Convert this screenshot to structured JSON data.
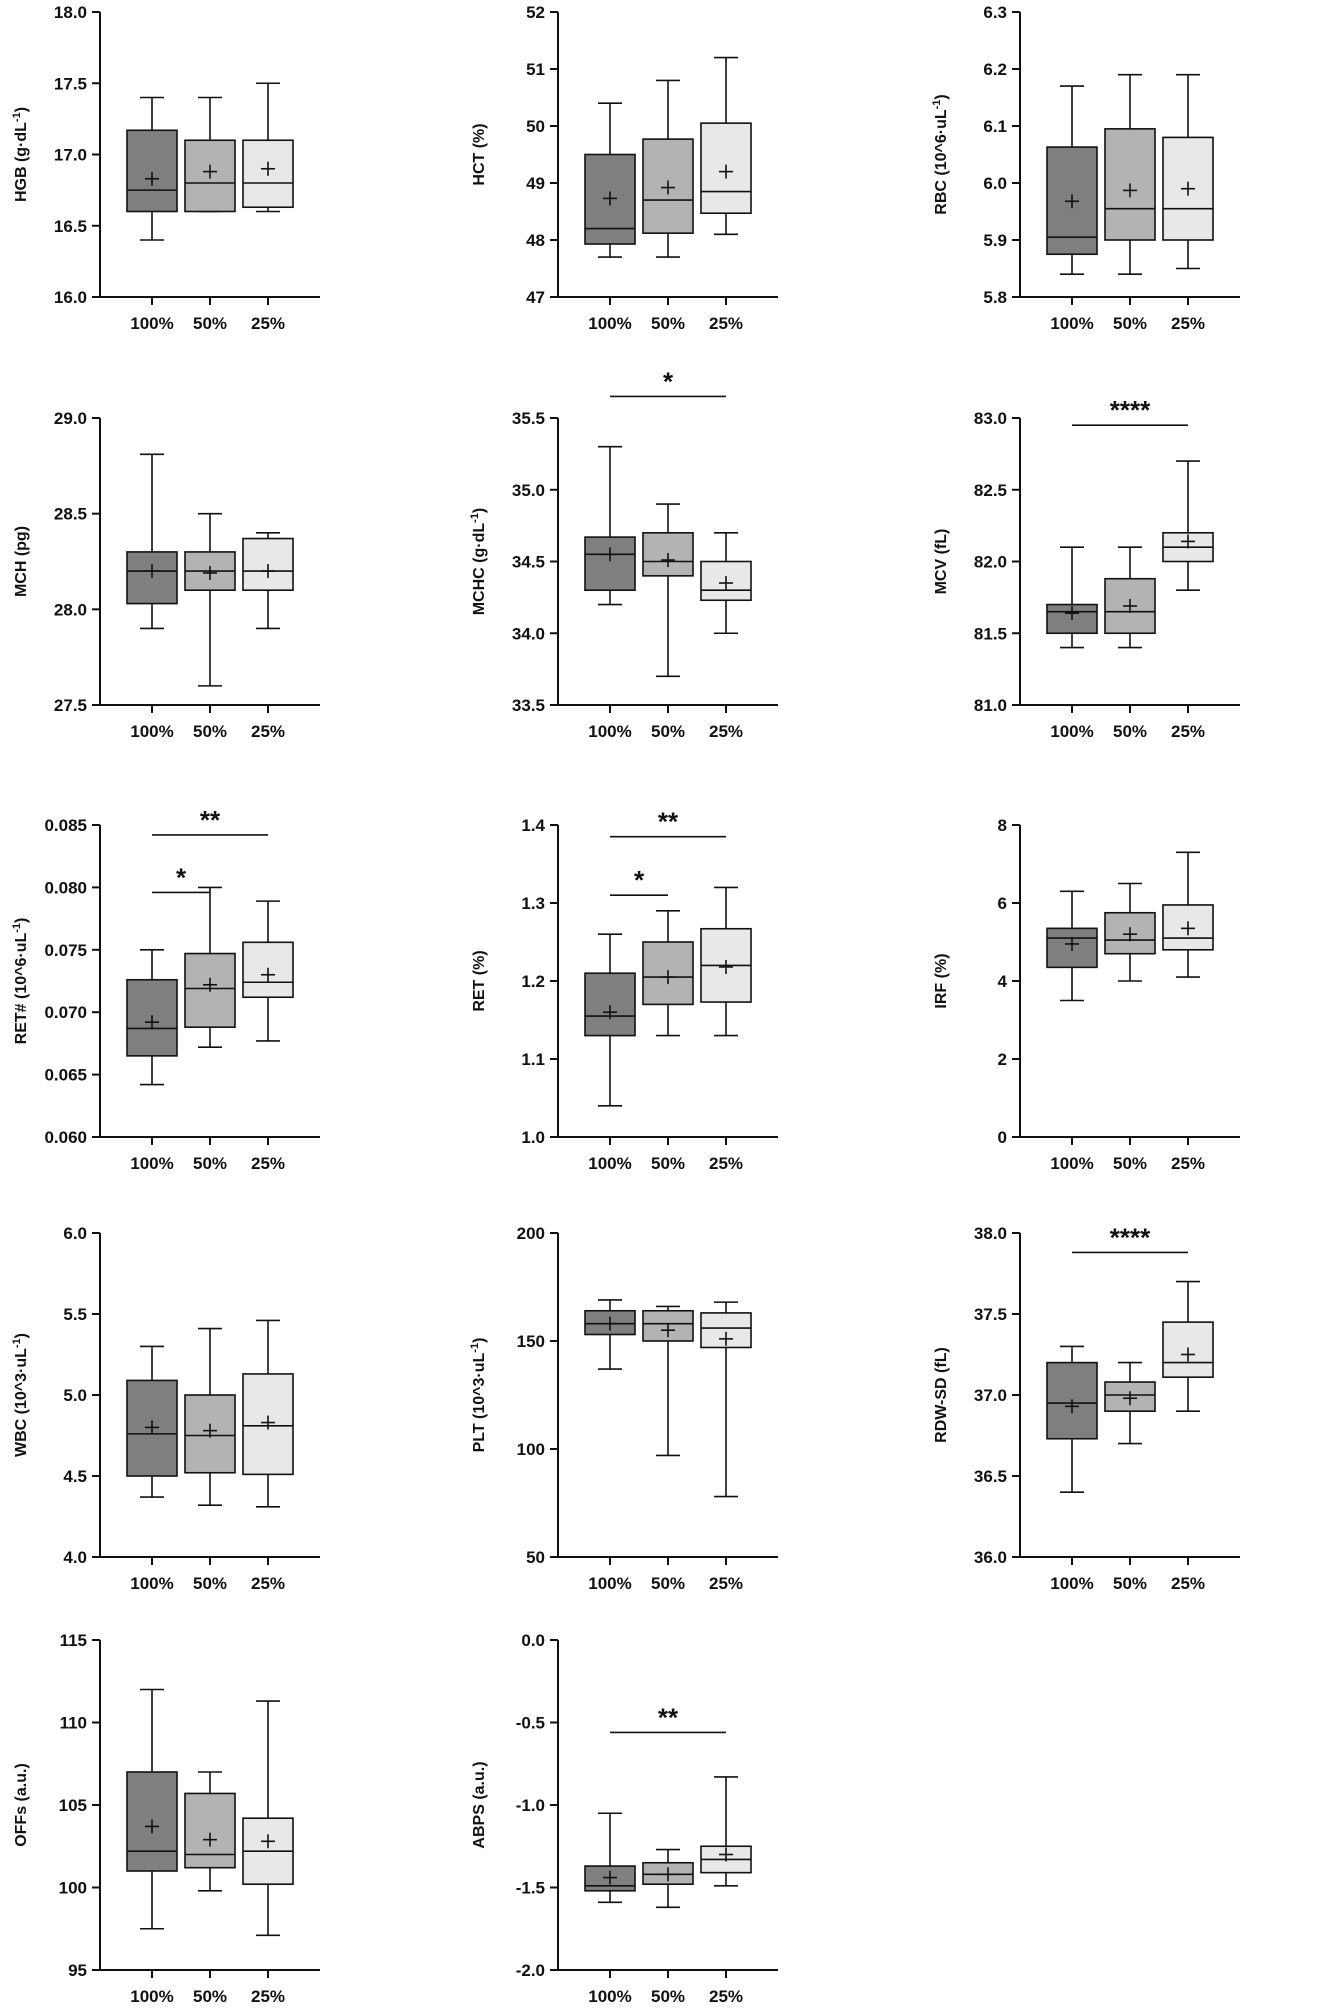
{
  "figure": {
    "title": ""
  },
  "groups": [
    "100%",
    "50%",
    "25%"
  ],
  "colors": {
    "fills": [
      "#7f7f7f",
      "#b3b3b3",
      "#e8e8e8"
    ],
    "stroke": "#111111"
  },
  "chart_data": [
    {
      "id": "hgb",
      "type": "boxplot",
      "ylabel": "HGB (g·dL",
      "ylabel_sup": "-1",
      "ylabel_end": ")",
      "ylim": [
        16.0,
        18.0
      ],
      "ticks": [
        16.0,
        16.5,
        17.0,
        17.5,
        18.0
      ],
      "tick_labels": [
        "16.0",
        "16.5",
        "17.0",
        "17.5",
        "18.0"
      ],
      "categories": [
        "100%",
        "50%",
        "25%"
      ],
      "boxes": [
        {
          "min": 16.4,
          "q1": 16.6,
          "median": 16.75,
          "q3": 17.17,
          "max": 17.4,
          "mean": 16.83
        },
        {
          "min": 16.6,
          "q1": 16.6,
          "median": 16.8,
          "q3": 17.1,
          "max": 17.4,
          "mean": 16.88
        },
        {
          "min": 16.6,
          "q1": 16.63,
          "median": 16.8,
          "q3": 17.1,
          "max": 17.5,
          "mean": 16.9
        }
      ],
      "significance": []
    },
    {
      "id": "hct",
      "type": "boxplot",
      "ylabel": "HCT (%)",
      "ylabel_sup": "",
      "ylabel_end": "",
      "ylim": [
        47,
        52
      ],
      "ticks": [
        47,
        48,
        49,
        50,
        51,
        52
      ],
      "tick_labels": [
        "47",
        "48",
        "49",
        "50",
        "51",
        "52"
      ],
      "categories": [
        "100%",
        "50%",
        "25%"
      ],
      "boxes": [
        {
          "min": 47.7,
          "q1": 47.93,
          "median": 48.2,
          "q3": 49.5,
          "max": 50.4,
          "mean": 48.73
        },
        {
          "min": 47.7,
          "q1": 48.12,
          "median": 48.7,
          "q3": 49.77,
          "max": 50.8,
          "mean": 48.92
        },
        {
          "min": 48.1,
          "q1": 48.47,
          "median": 48.85,
          "q3": 50.05,
          "max": 51.2,
          "mean": 49.2
        }
      ],
      "significance": []
    },
    {
      "id": "rbc",
      "type": "boxplot",
      "ylabel": "RBC (10^6·uL",
      "ylabel_sup": "-1",
      "ylabel_end": ")",
      "ylim": [
        5.8,
        6.3
      ],
      "ticks": [
        5.8,
        5.9,
        6.0,
        6.1,
        6.2,
        6.3
      ],
      "tick_labels": [
        "5.8",
        "5.9",
        "6.0",
        "6.1",
        "6.2",
        "6.3"
      ],
      "categories": [
        "100%",
        "50%",
        "25%"
      ],
      "boxes": [
        {
          "min": 5.84,
          "q1": 5.875,
          "median": 5.905,
          "q3": 6.063,
          "max": 6.17,
          "mean": 5.968
        },
        {
          "min": 5.84,
          "q1": 5.9,
          "median": 5.955,
          "q3": 6.095,
          "max": 6.19,
          "mean": 5.987
        },
        {
          "min": 5.85,
          "q1": 5.9,
          "median": 5.955,
          "q3": 6.08,
          "max": 6.19,
          "mean": 5.99
        }
      ],
      "significance": []
    },
    {
      "id": "mch",
      "type": "boxplot",
      "ylabel": "MCH (pg)",
      "ylabel_sup": "",
      "ylabel_end": "",
      "ylim": [
        27.5,
        29.0
      ],
      "ticks": [
        27.5,
        28.0,
        28.5,
        29.0
      ],
      "tick_labels": [
        "27.5",
        "28.0",
        "28.5",
        "29.0"
      ],
      "categories": [
        "100%",
        "50%",
        "25%"
      ],
      "boxes": [
        {
          "min": 27.9,
          "q1": 28.03,
          "median": 28.2,
          "q3": 28.3,
          "max": 28.81,
          "mean": 28.2
        },
        {
          "min": 27.6,
          "q1": 28.1,
          "median": 28.2,
          "q3": 28.3,
          "max": 28.5,
          "mean": 28.19
        },
        {
          "min": 27.9,
          "q1": 28.1,
          "median": 28.2,
          "q3": 28.37,
          "max": 28.4,
          "mean": 28.2
        }
      ],
      "significance": []
    },
    {
      "id": "mchc",
      "type": "boxplot",
      "ylabel": "MCHC (g·dL",
      "ylabel_sup": "-1",
      "ylabel_end": ")",
      "ylim": [
        33.5,
        35.5
      ],
      "ticks": [
        33.5,
        34.0,
        34.5,
        35.0,
        35.5
      ],
      "tick_labels": [
        "33.5",
        "34.0",
        "34.5",
        "35.0",
        "35.5"
      ],
      "categories": [
        "100%",
        "50%",
        "25%"
      ],
      "boxes": [
        {
          "min": 34.2,
          "q1": 34.3,
          "median": 34.55,
          "q3": 34.67,
          "max": 35.3,
          "mean": 34.55
        },
        {
          "min": 33.7,
          "q1": 34.4,
          "median": 34.5,
          "q3": 34.7,
          "max": 34.9,
          "mean": 34.51
        },
        {
          "min": 34.0,
          "q1": 34.23,
          "median": 34.3,
          "q3": 34.5,
          "max": 34.7,
          "mean": 34.35
        }
      ],
      "significance": [
        {
          "from": 0,
          "to": 2,
          "y": 35.65,
          "label": "*"
        }
      ]
    },
    {
      "id": "mcv",
      "type": "boxplot",
      "ylabel": "MCV (fL)",
      "ylabel_sup": "",
      "ylabel_end": "",
      "ylim": [
        81.0,
        83.0
      ],
      "ticks": [
        81.0,
        81.5,
        82.0,
        82.5,
        83.0
      ],
      "tick_labels": [
        "81.0",
        "81.5",
        "82.0",
        "82.5",
        "83.0"
      ],
      "categories": [
        "100%",
        "50%",
        "25%"
      ],
      "boxes": [
        {
          "min": 81.4,
          "q1": 81.5,
          "median": 81.65,
          "q3": 81.7,
          "max": 82.1,
          "mean": 81.64
        },
        {
          "min": 81.4,
          "q1": 81.5,
          "median": 81.65,
          "q3": 81.88,
          "max": 82.1,
          "mean": 81.69
        },
        {
          "min": 81.8,
          "q1": 82.0,
          "median": 82.1,
          "q3": 82.2,
          "max": 82.7,
          "mean": 82.14
        }
      ],
      "significance": [
        {
          "from": 0,
          "to": 2,
          "y": 82.95,
          "label": "****"
        }
      ]
    },
    {
      "id": "ret-abs",
      "type": "boxplot",
      "ylabel": "RET# (10^6·uL",
      "ylabel_sup": "-1",
      "ylabel_end": ")",
      "ylim": [
        0.06,
        0.085
      ],
      "ticks": [
        0.06,
        0.065,
        0.07,
        0.075,
        0.08,
        0.085
      ],
      "tick_labels": [
        "0.060",
        "0.065",
        "0.070",
        "0.075",
        "0.080",
        "0.085"
      ],
      "categories": [
        "100%",
        "50%",
        "25%"
      ],
      "boxes": [
        {
          "min": 0.0642,
          "q1": 0.0665,
          "median": 0.0687,
          "q3": 0.0726,
          "max": 0.075,
          "mean": 0.0692
        },
        {
          "min": 0.0672,
          "q1": 0.0688,
          "median": 0.0719,
          "q3": 0.0747,
          "max": 0.08,
          "mean": 0.0722
        },
        {
          "min": 0.0677,
          "q1": 0.0712,
          "median": 0.0724,
          "q3": 0.0756,
          "max": 0.0789,
          "mean": 0.073
        }
      ],
      "significance": [
        {
          "from": 0,
          "to": 1,
          "y": 0.0796,
          "label": "*"
        },
        {
          "from": 0,
          "to": 2,
          "y": 0.0842,
          "label": "**"
        }
      ]
    },
    {
      "id": "ret-pct",
      "type": "boxplot",
      "ylabel": "RET (%)",
      "ylabel_sup": "",
      "ylabel_end": "",
      "ylim": [
        1.0,
        1.4
      ],
      "ticks": [
        1.0,
        1.1,
        1.2,
        1.3,
        1.4
      ],
      "tick_labels": [
        "1.0",
        "1.1",
        "1.2",
        "1.3",
        "1.4"
      ],
      "categories": [
        "100%",
        "50%",
        "25%"
      ],
      "boxes": [
        {
          "min": 1.04,
          "q1": 1.13,
          "median": 1.155,
          "q3": 1.21,
          "max": 1.26,
          "mean": 1.16
        },
        {
          "min": 1.13,
          "q1": 1.17,
          "median": 1.205,
          "q3": 1.25,
          "max": 1.29,
          "mean": 1.205
        },
        {
          "min": 1.13,
          "q1": 1.173,
          "median": 1.22,
          "q3": 1.267,
          "max": 1.32,
          "mean": 1.218
        }
      ],
      "significance": [
        {
          "from": 0,
          "to": 1,
          "y": 1.31,
          "label": "*"
        },
        {
          "from": 0,
          "to": 2,
          "y": 1.385,
          "label": "**"
        }
      ]
    },
    {
      "id": "irf",
      "type": "boxplot",
      "ylabel": "IRF (%)",
      "ylabel_sup": "",
      "ylabel_end": "",
      "ylim": [
        0,
        8
      ],
      "ticks": [
        0,
        2,
        4,
        6,
        8
      ],
      "tick_labels": [
        "0",
        "2",
        "4",
        "6",
        "8"
      ],
      "categories": [
        "100%",
        "50%",
        "25%"
      ],
      "boxes": [
        {
          "min": 3.5,
          "q1": 4.35,
          "median": 5.1,
          "q3": 5.35,
          "max": 6.3,
          "mean": 4.95
        },
        {
          "min": 4.0,
          "q1": 4.7,
          "median": 5.05,
          "q3": 5.75,
          "max": 6.5,
          "mean": 5.2
        },
        {
          "min": 4.1,
          "q1": 4.8,
          "median": 5.1,
          "q3": 5.95,
          "max": 7.3,
          "mean": 5.35
        }
      ],
      "significance": []
    },
    {
      "id": "wbc",
      "type": "boxplot",
      "ylabel": "WBC (10^3·uL",
      "ylabel_sup": "-1",
      "ylabel_end": ")",
      "ylim": [
        4.0,
        6.0
      ],
      "ticks": [
        4.0,
        4.5,
        5.0,
        5.5,
        6.0
      ],
      "tick_labels": [
        "4.0",
        "4.5",
        "5.0",
        "5.5",
        "6.0"
      ],
      "categories": [
        "100%",
        "50%",
        "25%"
      ],
      "boxes": [
        {
          "min": 4.37,
          "q1": 4.5,
          "median": 4.76,
          "q3": 5.09,
          "max": 5.3,
          "mean": 4.8
        },
        {
          "min": 4.32,
          "q1": 4.52,
          "median": 4.75,
          "q3": 5.0,
          "max": 5.41,
          "mean": 4.78
        },
        {
          "min": 4.31,
          "q1": 4.51,
          "median": 4.81,
          "q3": 5.13,
          "max": 5.46,
          "mean": 4.83
        }
      ],
      "significance": []
    },
    {
      "id": "plt",
      "type": "boxplot",
      "ylabel": "PLT (10^3·uL",
      "ylabel_sup": "-1",
      "ylabel_end": ")",
      "ylim": [
        50,
        200
      ],
      "ticks": [
        50,
        100,
        150,
        200
      ],
      "tick_labels": [
        "50",
        "100",
        "150",
        "200"
      ],
      "categories": [
        "100%",
        "50%",
        "25%"
      ],
      "boxes": [
        {
          "min": 137,
          "q1": 153,
          "median": 158,
          "q3": 164,
          "max": 169,
          "mean": 158
        },
        {
          "min": 97,
          "q1": 150,
          "median": 158,
          "q3": 164,
          "max": 166,
          "mean": 155
        },
        {
          "min": 78,
          "q1": 147,
          "median": 156,
          "q3": 163,
          "max": 168,
          "mean": 151
        }
      ],
      "significance": []
    },
    {
      "id": "rdw-sd",
      "type": "boxplot",
      "ylabel": "RDW-SD (fL)",
      "ylabel_sup": "",
      "ylabel_end": "",
      "ylim": [
        36.0,
        38.0
      ],
      "ticks": [
        36.0,
        36.5,
        37.0,
        37.5,
        38.0
      ],
      "tick_labels": [
        "36.0",
        "36.5",
        "37.0",
        "37.5",
        "38.0"
      ],
      "categories": [
        "100%",
        "50%",
        "25%"
      ],
      "boxes": [
        {
          "min": 36.4,
          "q1": 36.73,
          "median": 36.95,
          "q3": 37.2,
          "max": 37.3,
          "mean": 36.93
        },
        {
          "min": 36.7,
          "q1": 36.9,
          "median": 37.0,
          "q3": 37.08,
          "max": 37.2,
          "mean": 36.98
        },
        {
          "min": 36.9,
          "q1": 37.11,
          "median": 37.2,
          "q3": 37.45,
          "max": 37.7,
          "mean": 37.25
        }
      ],
      "significance": [
        {
          "from": 0,
          "to": 2,
          "y": 37.88,
          "label": "****"
        }
      ]
    },
    {
      "id": "offs",
      "type": "boxplot",
      "ylabel": "OFFs (a.u.)",
      "ylabel_sup": "",
      "ylabel_end": "",
      "ylim": [
        95,
        115
      ],
      "ticks": [
        95,
        100,
        105,
        110,
        115
      ],
      "tick_labels": [
        "95",
        "100",
        "105",
        "110",
        "115"
      ],
      "categories": [
        "100%",
        "50%",
        "25%"
      ],
      "boxes": [
        {
          "min": 97.5,
          "q1": 101.0,
          "median": 102.2,
          "q3": 107.0,
          "max": 112.0,
          "mean": 103.7
        },
        {
          "min": 99.8,
          "q1": 101.2,
          "median": 102.0,
          "q3": 105.7,
          "max": 107.0,
          "mean": 102.9
        },
        {
          "min": 97.1,
          "q1": 100.2,
          "median": 102.2,
          "q3": 104.2,
          "max": 111.3,
          "mean": 102.8
        }
      ],
      "significance": []
    },
    {
      "id": "abps",
      "type": "boxplot",
      "ylabel": "ABPS (a.u.)",
      "ylabel_sup": "",
      "ylabel_end": "",
      "ylim": [
        -2.0,
        0.0
      ],
      "ticks": [
        -2.0,
        -1.5,
        -1.0,
        -0.5,
        0.0
      ],
      "tick_labels": [
        "-2.0",
        "-1.5",
        "-1.0",
        "-0.5",
        "0.0"
      ],
      "categories": [
        "100%",
        "50%",
        "25%"
      ],
      "boxes": [
        {
          "min": -1.59,
          "q1": -1.52,
          "median": -1.49,
          "q3": -1.37,
          "max": -1.05,
          "mean": -1.44
        },
        {
          "min": -1.62,
          "q1": -1.48,
          "median": -1.42,
          "q3": -1.35,
          "max": -1.27,
          "mean": -1.42
        },
        {
          "min": -1.49,
          "q1": -1.41,
          "median": -1.33,
          "q3": -1.25,
          "max": -0.83,
          "mean": -1.3
        }
      ],
      "significance": [
        {
          "from": 0,
          "to": 2,
          "y": -0.56,
          "label": "**"
        }
      ]
    }
  ]
}
